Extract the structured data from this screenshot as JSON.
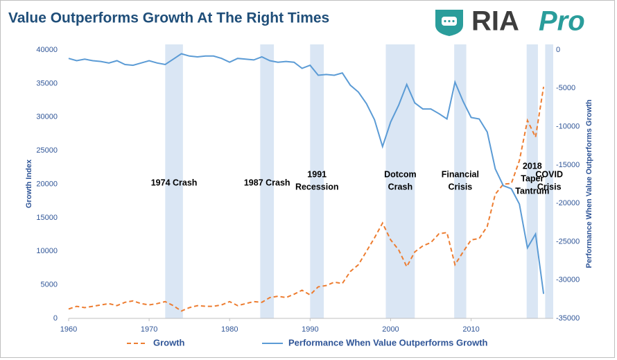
{
  "logo": {
    "part1": "RIA",
    "part2": "Pro"
  },
  "chart_data": {
    "type": "line",
    "title": "Value Outperforms Growth At The Right Times",
    "y_label": "Growth Index",
    "y2_label": "Performance When Value Outperforms Growth",
    "x": [
      1960,
      1961,
      1962,
      1963,
      1964,
      1965,
      1966,
      1967,
      1968,
      1969,
      1970,
      1971,
      1972,
      1973,
      1974,
      1975,
      1976,
      1977,
      1978,
      1979,
      1980,
      1981,
      1982,
      1983,
      1984,
      1985,
      1986,
      1987,
      1988,
      1989,
      1990,
      1991,
      1992,
      1993,
      1994,
      1995,
      1996,
      1997,
      1998,
      1999,
      2000,
      2001,
      2002,
      2003,
      2004,
      2005,
      2006,
      2007,
      2008,
      2009,
      2010,
      2011,
      2012,
      2013,
      2014,
      2015,
      2016,
      2017,
      2018,
      2019
    ],
    "xlim": [
      1960,
      2020.2
    ],
    "xticks": [
      1960,
      1970,
      1980,
      1990,
      2000,
      2010
    ],
    "ylim": [
      0,
      40000
    ],
    "yticks": [
      0,
      5000,
      10000,
      15000,
      20000,
      25000,
      30000,
      35000,
      40000
    ],
    "y2lim": [
      -35000,
      0
    ],
    "y2ticks": [
      0,
      -5000,
      -10000,
      -15000,
      -20000,
      -25000,
      -30000,
      -35000
    ],
    "legend": "bottom",
    "series": [
      {
        "name": "Growth",
        "color": "#ed7d31",
        "dashed": true,
        "values": [
          1400,
          1800,
          1600,
          1800,
          2000,
          2200,
          1900,
          2400,
          2600,
          2200,
          2000,
          2200,
          2500,
          1900,
          1100,
          1600,
          1900,
          1800,
          1800,
          2000,
          2500,
          1900,
          2200,
          2500,
          2400,
          3100,
          3300,
          3100,
          3600,
          4200,
          3500,
          4700,
          4900,
          5400,
          5200,
          7000,
          8000,
          10000,
          12000,
          14200,
          11700,
          10200,
          7700,
          9900,
          10800,
          11300,
          12600,
          12800,
          8000,
          9900,
          11700,
          11900,
          13700,
          18500,
          20000,
          20100,
          23500,
          29500,
          27000,
          34500
        ]
      },
      {
        "name": "Performance When Value Outperforms Growth",
        "color": "#5b9bd5",
        "axis": "y2",
        "values": [
          -1100,
          -1400,
          -1200,
          -1400,
          -1500,
          -1700,
          -1400,
          -1900,
          -2000,
          -1700,
          -1400,
          -1700,
          -1900,
          -1200,
          -500,
          -800,
          -900,
          -800,
          -800,
          -1100,
          -1600,
          -1100,
          -1200,
          -1300,
          -900,
          -1400,
          -1600,
          -1500,
          -1600,
          -2400,
          -2000,
          -3300,
          -3200,
          -3300,
          -3000,
          -4600,
          -5500,
          -7000,
          -9100,
          -12600,
          -9400,
          -7200,
          -4500,
          -6900,
          -7700,
          -7700,
          -8300,
          -9000,
          -4200,
          -6700,
          -8800,
          -9000,
          -10700,
          -15500,
          -17700,
          -18100,
          -20100,
          -25800,
          -24000,
          -31800
        ]
      }
    ],
    "shade_color": "#dae6f4",
    "shaded_periods": [
      {
        "start": 1972,
        "end": 1974.2,
        "label": [
          "1974 Crash"
        ]
      },
      {
        "start": 1983.8,
        "end": 1985.5,
        "label": [
          "1987 Crash"
        ]
      },
      {
        "start": 1990,
        "end": 1991.7,
        "label": [
          "1991",
          "Recession"
        ]
      },
      {
        "start": 1999.4,
        "end": 2003,
        "label": [
          "Dotcom",
          "Crash"
        ]
      },
      {
        "start": 2007.9,
        "end": 2009.4,
        "label": [
          "Financial",
          "Crisis"
        ]
      },
      {
        "start": 2016.9,
        "end": 2018.3,
        "label": [
          "2018",
          "Taper",
          "Tantrum"
        ]
      },
      {
        "start": 2019.2,
        "end": 2020.2,
        "label": [
          "COVID",
          "Crisis"
        ]
      }
    ]
  }
}
